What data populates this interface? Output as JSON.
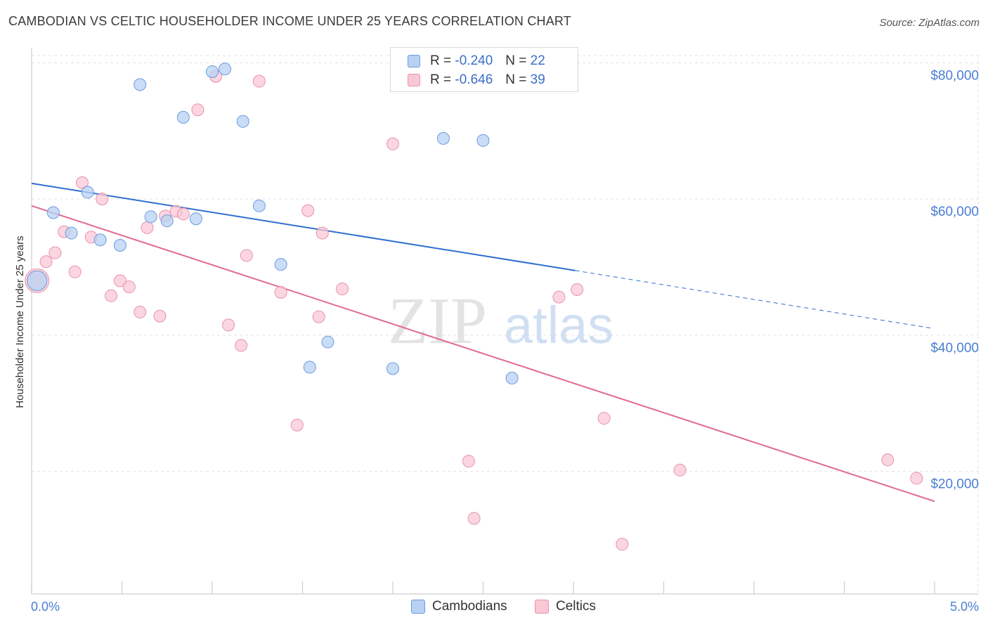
{
  "header": {
    "title": "CAMBODIAN VS CELTIC HOUSEHOLDER INCOME UNDER 25 YEARS CORRELATION CHART",
    "source": "Source: ZipAtlas.com"
  },
  "legend": {
    "rows": [
      {
        "r_label": "R =",
        "r_value": "-0.240",
        "n_label": "N =",
        "n_value": "22"
      },
      {
        "r_label": "R =",
        "r_value": "-0.646",
        "n_label": "N =",
        "n_value": "39"
      }
    ]
  },
  "bottom_legend": [
    "Cambodians",
    "Celtics"
  ],
  "watermark": {
    "zip": "ZIP",
    "atlas": "atlas"
  },
  "colors": {
    "cambodians_fill": "#b8d1f3",
    "cambodians_stroke": "#6b9be0",
    "cambodians_line": "#2f6fd0",
    "celtics_fill": "#f9c8d5",
    "celtics_stroke": "#e892ab",
    "celtics_line": "#e06a92",
    "tick_label": "#4a7fd0",
    "grid": "#e3e3e3"
  },
  "chart_data": {
    "type": "scatter",
    "title": "CAMBODIAN VS CELTIC HOUSEHOLDER INCOME UNDER 25 YEARS CORRELATION CHART",
    "xlabel": "",
    "ylabel": "Householder Income Under 25 years",
    "xlim": [
      0,
      5
    ],
    "ylim": [
      2000,
      82000
    ],
    "x_tick_labels": [
      "0.0%",
      "5.0%"
    ],
    "y_ticks": [
      20000,
      40000,
      60000,
      80000
    ],
    "y_tick_labels": [
      "$20,000",
      "$40,000",
      "$60,000",
      "$80,000"
    ],
    "grid": true,
    "series": [
      {
        "name": "Cambodians",
        "points": [
          [
            0.03,
            48000
          ],
          [
            0.12,
            58000
          ],
          [
            0.22,
            55000
          ],
          [
            0.31,
            61000
          ],
          [
            0.38,
            54000
          ],
          [
            0.49,
            53200
          ],
          [
            0.6,
            76800
          ],
          [
            0.66,
            57400
          ],
          [
            0.75,
            56800
          ],
          [
            0.84,
            72000
          ],
          [
            0.91,
            57100
          ],
          [
            1.0,
            78700
          ],
          [
            1.07,
            79100
          ],
          [
            1.17,
            71400
          ],
          [
            1.26,
            59000
          ],
          [
            1.38,
            50400
          ],
          [
            1.54,
            35300
          ],
          [
            1.64,
            39000
          ],
          [
            2.0,
            35100
          ],
          [
            2.28,
            68900
          ],
          [
            2.5,
            68600
          ],
          [
            2.66,
            33700
          ]
        ],
        "trend": {
          "x": [
            0,
            3.01
          ],
          "y": [
            62300,
            49500
          ],
          "dashed_to": {
            "x": 4.99,
            "y": 41000
          }
        }
      },
      {
        "name": "Celtics",
        "points": [
          [
            0.03,
            48000
          ],
          [
            0.08,
            50800
          ],
          [
            0.13,
            52100
          ],
          [
            0.18,
            55200
          ],
          [
            0.24,
            49300
          ],
          [
            0.28,
            62400
          ],
          [
            0.33,
            54400
          ],
          [
            0.39,
            60000
          ],
          [
            0.44,
            45800
          ],
          [
            0.49,
            48000
          ],
          [
            0.54,
            47100
          ],
          [
            0.6,
            43400
          ],
          [
            0.64,
            55800
          ],
          [
            0.71,
            42800
          ],
          [
            0.74,
            57500
          ],
          [
            0.8,
            58200
          ],
          [
            0.84,
            57800
          ],
          [
            0.92,
            73100
          ],
          [
            1.02,
            78000
          ],
          [
            1.09,
            41500
          ],
          [
            1.16,
            38500
          ],
          [
            1.19,
            51700
          ],
          [
            1.26,
            77300
          ],
          [
            1.38,
            46300
          ],
          [
            1.47,
            26800
          ],
          [
            1.53,
            58300
          ],
          [
            1.59,
            42700
          ],
          [
            1.61,
            55000
          ],
          [
            1.72,
            46800
          ],
          [
            2.0,
            68100
          ],
          [
            2.42,
            21500
          ],
          [
            2.45,
            13100
          ],
          [
            2.92,
            45600
          ],
          [
            3.02,
            46700
          ],
          [
            3.17,
            27800
          ],
          [
            3.27,
            9300
          ],
          [
            3.59,
            20200
          ],
          [
            4.74,
            21700
          ],
          [
            4.9,
            19000
          ]
        ],
        "trend": {
          "x": [
            0,
            5.0
          ],
          "y": [
            59000,
            15600
          ]
        }
      }
    ]
  }
}
